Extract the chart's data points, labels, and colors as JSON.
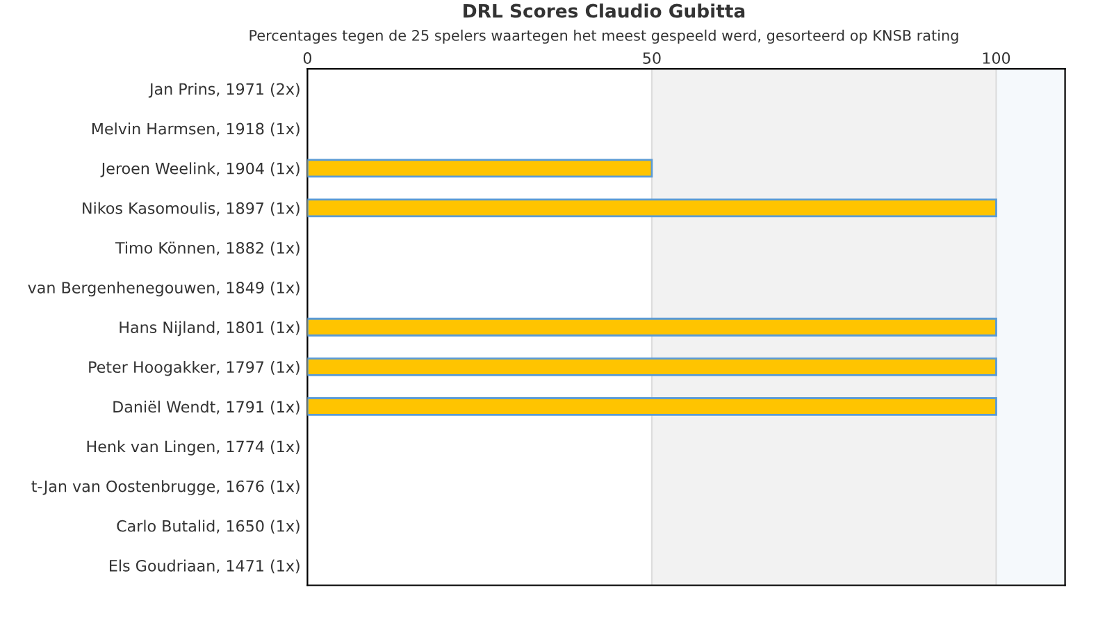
{
  "chart_data": {
    "type": "bar",
    "orientation": "horizontal",
    "title": "DRL Scores Claudio Gubitta",
    "subtitle": "Percentages tegen de 25 spelers waartegen het meest gespeeld werd, gesorteerd op KNSB rating",
    "categories": [
      "Jan Prins, 1971 (2x)",
      "Melvin Harmsen, 1918 (1x)",
      "Jeroen Weelink, 1904 (1x)",
      "Nikos Kasomoulis, 1897 (1x)",
      "Timo Können, 1882 (1x)",
      "van Bergenhenegouwen, 1849 (1x)",
      "Hans Nijland, 1801 (1x)",
      "Peter Hoogakker, 1797 (1x)",
      "Daniël Wendt, 1791 (1x)",
      "Henk van Lingen, 1774 (1x)",
      "t-Jan van Oostenbrugge, 1676 (1x)",
      "Carlo Butalid, 1650 (1x)",
      "Els Goudriaan, 1471 (1x)"
    ],
    "values": [
      0,
      0,
      50,
      100,
      0,
      0,
      100,
      100,
      100,
      0,
      0,
      0,
      0
    ],
    "color": "#ffc400",
    "xlim": [
      0,
      110
    ],
    "xticks": [
      0,
      50,
      100
    ],
    "grid": "x",
    "bands": [
      {
        "axis": "x",
        "from": 50,
        "to": 100,
        "color": "#f2f2f2"
      },
      {
        "axis": "x",
        "from": 100,
        "to": 110,
        "color": "#f5f9fc"
      }
    ]
  }
}
